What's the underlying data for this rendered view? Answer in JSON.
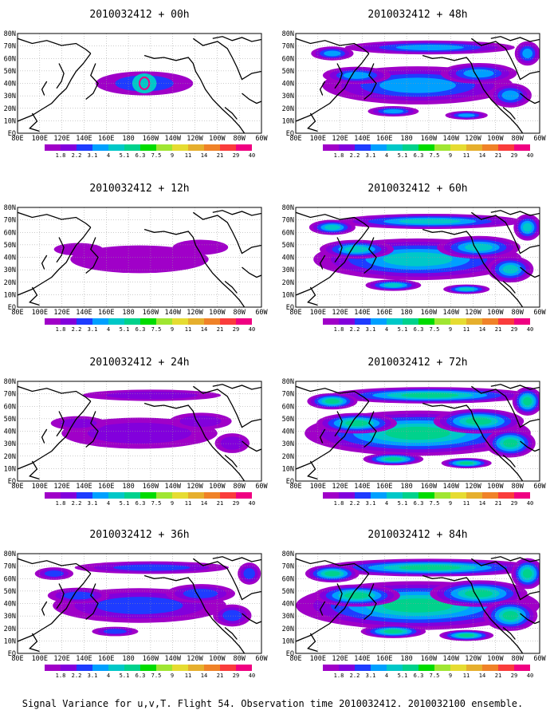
{
  "figure": {
    "caption": "Signal Variance for u,v,T. Flight 54. Observation time 2010032412. 2010032100 ensemble.",
    "panels": [
      {
        "title": "2010032412 + 00h",
        "intensity": 0
      },
      {
        "title": "2010032412 + 48h",
        "intensity": 4
      },
      {
        "title": "2010032412 + 12h",
        "intensity": 1
      },
      {
        "title": "2010032412 + 60h",
        "intensity": 5
      },
      {
        "title": "2010032412 + 24h",
        "intensity": 2
      },
      {
        "title": "2010032412 + 72h",
        "intensity": 6
      },
      {
        "title": "2010032412 + 36h",
        "intensity": 3
      },
      {
        "title": "2010032412 + 84h",
        "intensity": 7
      }
    ],
    "x_ticks": [
      "80E",
      "100E",
      "120E",
      "140E",
      "160E",
      "180",
      "160W",
      "140W",
      "120W",
      "100W",
      "80W",
      "60W"
    ],
    "y_ticks": [
      "80N",
      "70N",
      "60N",
      "50N",
      "40N",
      "30N",
      "20N",
      "10N",
      "EQ"
    ],
    "colorbar": {
      "labels": [
        "1.8",
        "2.2",
        "3.1",
        "4",
        "5.1",
        "6.3",
        "7.5",
        "9",
        "11",
        "14",
        "21",
        "29",
        "40"
      ],
      "colors": [
        "#a000c8",
        "#8200dc",
        "#1e3cff",
        "#00a0ff",
        "#00c8c8",
        "#00d28c",
        "#00dc00",
        "#a0e632",
        "#e6dc32",
        "#e6af2d",
        "#f08228",
        "#fa3c3c",
        "#f00082"
      ]
    }
  }
}
